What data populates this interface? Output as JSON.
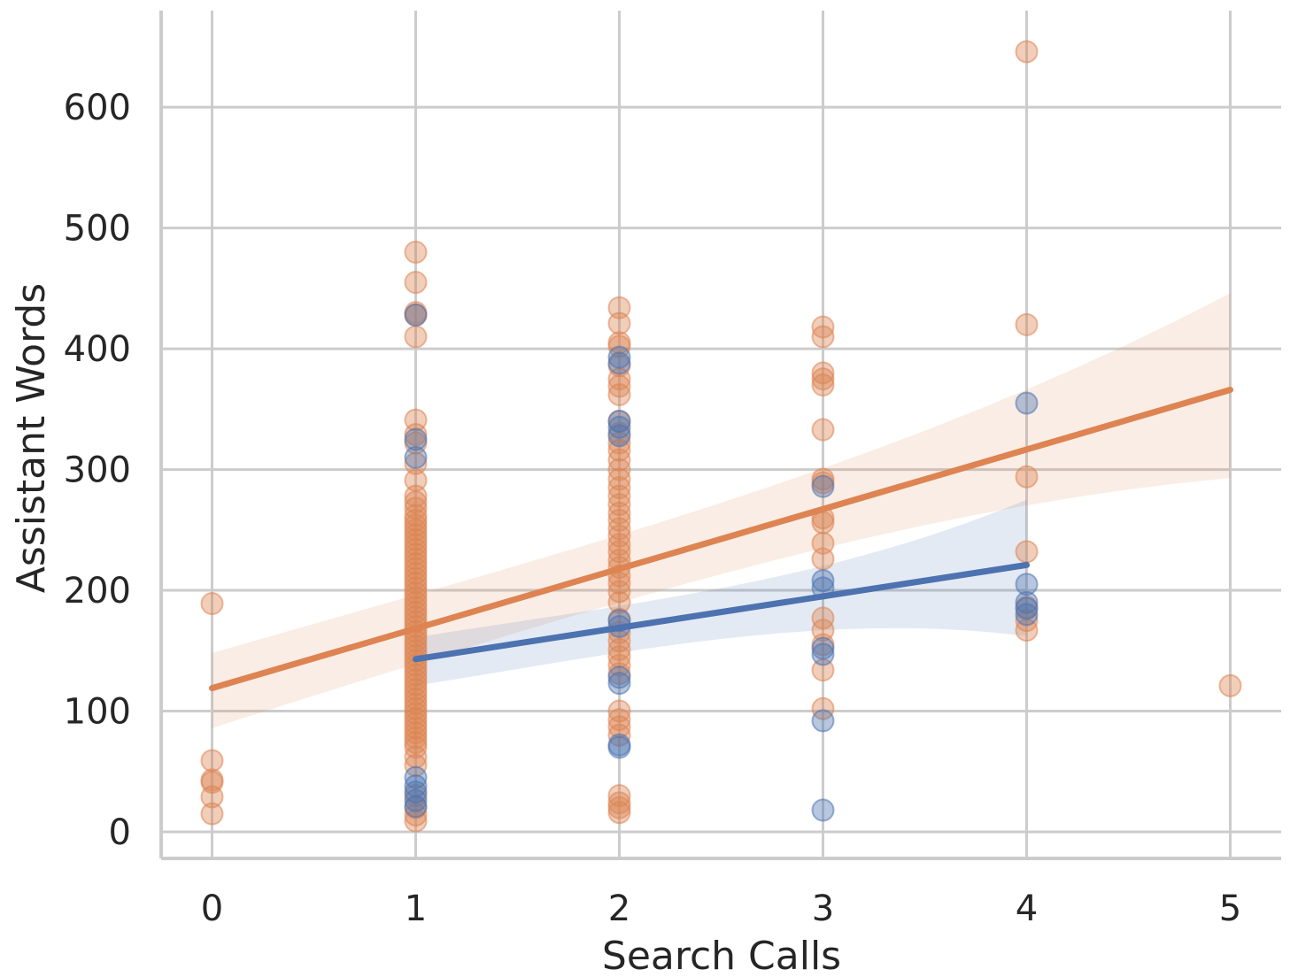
{
  "chart_data": {
    "type": "scatter",
    "xlabel": "Search Calls",
    "ylabel": "Assistant Words",
    "xlim": [
      -0.25,
      5.25
    ],
    "ylim": [
      -22,
      680
    ],
    "x_ticks": [
      "0",
      "1",
      "2",
      "3",
      "4",
      "5"
    ],
    "y_ticks": [
      "0",
      "100",
      "200",
      "300",
      "400",
      "500",
      "600"
    ],
    "grid": true,
    "legend": "none",
    "colors": {
      "orange": "#dd8452",
      "blue": "#4c72b0"
    },
    "series": [
      {
        "color": "orange",
        "points": [
          [
            0,
            189
          ],
          [
            0,
            59
          ],
          [
            0,
            43
          ],
          [
            0,
            41
          ],
          [
            0,
            29
          ],
          [
            0,
            15
          ],
          [
            1,
            480
          ],
          [
            1,
            455
          ],
          [
            1,
            430
          ],
          [
            1,
            428
          ],
          [
            1,
            410
          ],
          [
            1,
            341
          ],
          [
            1,
            329
          ],
          [
            1,
            322
          ],
          [
            1,
            305
          ],
          [
            1,
            291
          ],
          [
            1,
            278
          ],
          [
            1,
            273
          ],
          [
            1,
            268
          ],
          [
            1,
            262
          ],
          [
            1,
            258
          ],
          [
            1,
            254
          ],
          [
            1,
            250
          ],
          [
            1,
            246
          ],
          [
            1,
            242
          ],
          [
            1,
            238
          ],
          [
            1,
            234
          ],
          [
            1,
            230
          ],
          [
            1,
            226
          ],
          [
            1,
            222
          ],
          [
            1,
            218
          ],
          [
            1,
            214
          ],
          [
            1,
            210
          ],
          [
            1,
            206
          ],
          [
            1,
            202
          ],
          [
            1,
            198
          ],
          [
            1,
            194
          ],
          [
            1,
            190
          ],
          [
            1,
            186
          ],
          [
            1,
            182
          ],
          [
            1,
            178
          ],
          [
            1,
            174
          ],
          [
            1,
            170
          ],
          [
            1,
            166
          ],
          [
            1,
            162
          ],
          [
            1,
            158
          ],
          [
            1,
            154
          ],
          [
            1,
            150
          ],
          [
            1,
            146
          ],
          [
            1,
            142
          ],
          [
            1,
            138
          ],
          [
            1,
            134
          ],
          [
            1,
            130
          ],
          [
            1,
            126
          ],
          [
            1,
            122
          ],
          [
            1,
            118
          ],
          [
            1,
            114
          ],
          [
            1,
            110
          ],
          [
            1,
            106
          ],
          [
            1,
            102
          ],
          [
            1,
            98
          ],
          [
            1,
            94
          ],
          [
            1,
            90
          ],
          [
            1,
            86
          ],
          [
            1,
            82
          ],
          [
            1,
            78
          ],
          [
            1,
            74
          ],
          [
            1,
            70
          ],
          [
            1,
            62
          ],
          [
            1,
            55
          ],
          [
            1,
            30
          ],
          [
            1,
            20
          ],
          [
            1,
            14
          ],
          [
            1,
            9
          ],
          [
            2,
            434
          ],
          [
            2,
            421
          ],
          [
            2,
            405
          ],
          [
            2,
            402
          ],
          [
            2,
            386
          ],
          [
            2,
            375
          ],
          [
            2,
            369
          ],
          [
            2,
            362
          ],
          [
            2,
            340
          ],
          [
            2,
            330
          ],
          [
            2,
            322
          ],
          [
            2,
            316
          ],
          [
            2,
            308
          ],
          [
            2,
            300
          ],
          [
            2,
            292
          ],
          [
            2,
            285
          ],
          [
            2,
            278
          ],
          [
            2,
            271
          ],
          [
            2,
            264
          ],
          [
            2,
            258
          ],
          [
            2,
            251
          ],
          [
            2,
            245
          ],
          [
            2,
            238
          ],
          [
            2,
            232
          ],
          [
            2,
            225
          ],
          [
            2,
            219
          ],
          [
            2,
            212
          ],
          [
            2,
            206
          ],
          [
            2,
            199
          ],
          [
            2,
            190
          ],
          [
            2,
            176
          ],
          [
            2,
            165
          ],
          [
            2,
            158
          ],
          [
            2,
            151
          ],
          [
            2,
            145
          ],
          [
            2,
            138
          ],
          [
            2,
            131
          ],
          [
            2,
            100
          ],
          [
            2,
            93
          ],
          [
            2,
            87
          ],
          [
            2,
            80
          ],
          [
            2,
            30
          ],
          [
            2,
            24
          ],
          [
            2,
            20
          ],
          [
            2,
            16
          ],
          [
            3,
            418
          ],
          [
            3,
            410
          ],
          [
            3,
            380
          ],
          [
            3,
            375
          ],
          [
            3,
            370
          ],
          [
            3,
            333
          ],
          [
            3,
            292
          ],
          [
            3,
            289
          ],
          [
            3,
            260
          ],
          [
            3,
            256
          ],
          [
            3,
            239
          ],
          [
            3,
            226
          ],
          [
            3,
            177
          ],
          [
            3,
            167
          ],
          [
            3,
            155
          ],
          [
            3,
            134
          ],
          [
            3,
            102
          ],
          [
            4,
            646
          ],
          [
            4,
            420
          ],
          [
            4,
            294
          ],
          [
            4,
            232
          ],
          [
            4,
            186
          ],
          [
            4,
            175
          ],
          [
            4,
            167
          ],
          [
            5,
            121
          ]
        ]
      },
      {
        "color": "blue",
        "points": [
          [
            1,
            428
          ],
          [
            1,
            325
          ],
          [
            1,
            310
          ],
          [
            1,
            45
          ],
          [
            1,
            38
          ],
          [
            1,
            33
          ],
          [
            1,
            26
          ],
          [
            1,
            21
          ],
          [
            2,
            393
          ],
          [
            2,
            388
          ],
          [
            2,
            340
          ],
          [
            2,
            335
          ],
          [
            2,
            328
          ],
          [
            2,
            175
          ],
          [
            2,
            170
          ],
          [
            2,
            128
          ],
          [
            2,
            123
          ],
          [
            2,
            72
          ],
          [
            2,
            70
          ],
          [
            3,
            286
          ],
          [
            3,
            208
          ],
          [
            3,
            202
          ],
          [
            3,
            152
          ],
          [
            3,
            147
          ],
          [
            3,
            92
          ],
          [
            3,
            18
          ],
          [
            4,
            355
          ],
          [
            4,
            205
          ],
          [
            4,
            190
          ],
          [
            4,
            185
          ],
          [
            4,
            180
          ]
        ]
      }
    ],
    "regression": [
      {
        "color": "orange",
        "x": [
          0,
          5
        ],
        "y": [
          119,
          366
        ],
        "ci_lower": [
          86,
          293
        ],
        "ci_upper": [
          148,
          446
        ]
      },
      {
        "color": "blue",
        "x": [
          1,
          4
        ],
        "y": [
          143,
          221
        ],
        "ci_lower": [
          121,
          162
        ],
        "ci_upper": [
          161,
          275
        ]
      }
    ]
  }
}
